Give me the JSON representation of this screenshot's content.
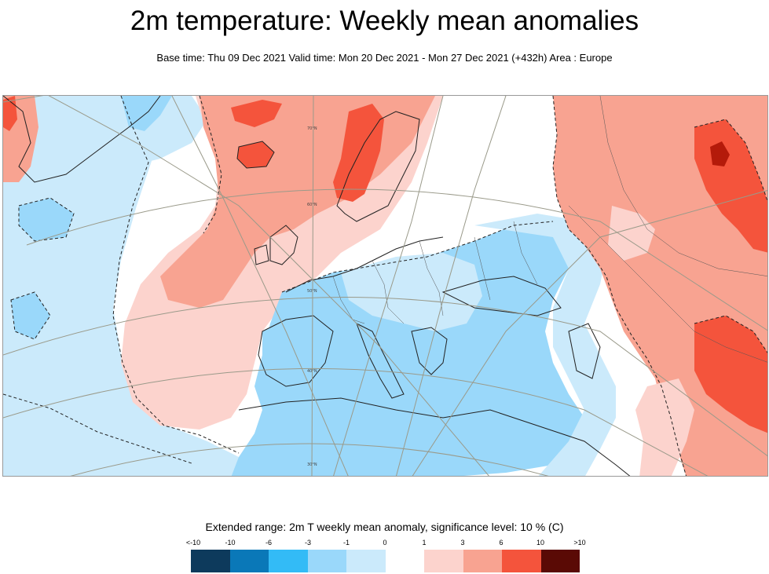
{
  "header": {
    "title": "2m temperature: Weekly mean anomalies",
    "subtitle": "Base time: Thu 09 Dec 2021 Valid time: Mon 20 Dec 2021 - Mon 27 Dec 2021 (+432h) Area : Europe"
  },
  "map": {
    "graticule_labels": [
      "70°N",
      "60°N",
      "50°N",
      "40°N",
      "30°N"
    ]
  },
  "legend": {
    "title": "Extended range: 2m T weekly mean anomaly, significance level: 10 % (C)",
    "labels": [
      "<-10",
      "-10",
      "-6",
      "-3",
      "-1",
      "0",
      "1",
      "3",
      "6",
      "10",
      ">10"
    ],
    "colors": [
      "#0d3a5c",
      "#0a78b8",
      "#33bbf6",
      "#9ad8fa",
      "#cbeafb",
      "#ffffff",
      "#fcd3cd",
      "#f8a391",
      "#f4543c",
      "#b41a0a",
      "#5a0a05"
    ]
  }
}
